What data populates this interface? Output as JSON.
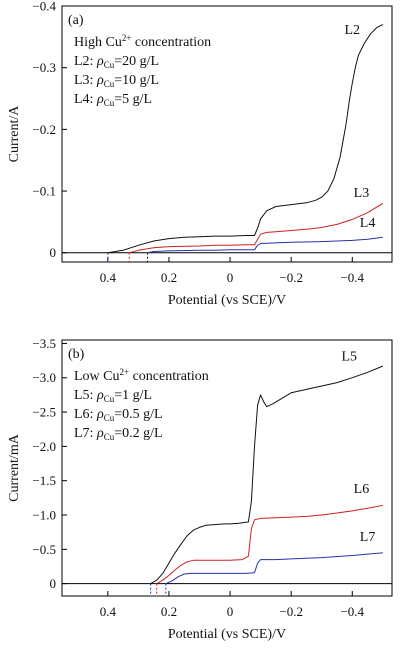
{
  "chart_data": [
    {
      "type": "line",
      "panel_label": "(a)",
      "title": "",
      "xlabel": "Potential (vs SCE)/V",
      "ylabel": "Current/A",
      "xlim": [
        0.55,
        -0.53
      ],
      "ylim": [
        0.015,
        -0.4
      ],
      "x_ticks": [
        "0.4",
        "0.2",
        "0",
        "−0.2",
        "−0.4"
      ],
      "x_tick_values": [
        0.4,
        0.2,
        0,
        -0.2,
        -0.4
      ],
      "y_ticks": [
        "0",
        "−0.1",
        "−0.2",
        "−0.3",
        "−0.4"
      ],
      "y_tick_values": [
        0,
        -0.1,
        -0.2,
        -0.3,
        -0.4
      ],
      "legend": {
        "heading": "High Cu²⁺ concentration",
        "heading_main": "High Cu",
        "heading_sup": "2+",
        "heading_rest": " concentration",
        "entries": [
          {
            "prefix": "L2: ",
            "rho": "ρ",
            "sub": "Cu",
            "rest": "=20 g/L"
          },
          {
            "prefix": "L3: ",
            "rho": "ρ",
            "sub": "Cu",
            "rest": "=10 g/L"
          },
          {
            "prefix": "L4: ",
            "rho": "ρ",
            "sub": "Cu",
            "rest": "=5 g/L"
          }
        ]
      },
      "series": [
        {
          "name": "L2",
          "color": "#111111",
          "label_at": [
            -0.4,
            -0.355
          ],
          "x": [
            0.4,
            0.35,
            0.3,
            0.25,
            0.2,
            0.15,
            0.1,
            0.05,
            0.0,
            -0.05,
            -0.08,
            -0.09,
            -0.1,
            -0.12,
            -0.15,
            -0.2,
            -0.25,
            -0.28,
            -0.3,
            -0.32,
            -0.34,
            -0.36,
            -0.38,
            -0.39,
            -0.4,
            -0.41,
            -0.42,
            -0.44,
            -0.46,
            -0.48,
            -0.5
          ],
          "y": [
            0,
            -0.004,
            -0.012,
            -0.019,
            -0.023,
            -0.025,
            -0.026,
            -0.027,
            -0.027,
            -0.028,
            -0.028,
            -0.04,
            -0.055,
            -0.068,
            -0.075,
            -0.078,
            -0.081,
            -0.085,
            -0.09,
            -0.1,
            -0.12,
            -0.155,
            -0.21,
            -0.245,
            -0.275,
            -0.3,
            -0.32,
            -0.34,
            -0.355,
            -0.365,
            -0.37
          ]
        },
        {
          "name": "L3",
          "color": "#cc2222",
          "label_at": [
            -0.43,
            -0.09
          ],
          "x": [
            0.33,
            0.3,
            0.25,
            0.2,
            0.1,
            0.05,
            0.0,
            -0.05,
            -0.08,
            -0.09,
            -0.1,
            -0.12,
            -0.15,
            -0.2,
            -0.25,
            -0.3,
            -0.35,
            -0.4,
            -0.45,
            -0.5
          ],
          "y": [
            0,
            -0.004,
            -0.008,
            -0.01,
            -0.011,
            -0.012,
            -0.012,
            -0.013,
            -0.013,
            -0.022,
            -0.03,
            -0.033,
            -0.034,
            -0.036,
            -0.038,
            -0.041,
            -0.046,
            -0.054,
            -0.065,
            -0.08
          ]
        },
        {
          "name": "L4",
          "color": "#2233aa",
          "label_at": [
            -0.45,
            -0.042
          ],
          "x": [
            0.27,
            0.25,
            0.2,
            0.1,
            0.05,
            0.0,
            -0.05,
            -0.08,
            -0.09,
            -0.1,
            -0.15,
            -0.2,
            -0.3,
            -0.4,
            -0.45,
            -0.5
          ],
          "y": [
            0,
            -0.002,
            -0.003,
            -0.004,
            -0.004,
            -0.005,
            -0.005,
            -0.005,
            -0.012,
            -0.015,
            -0.016,
            -0.017,
            -0.018,
            -0.02,
            -0.022,
            -0.025
          ]
        }
      ],
      "onset_markers": [
        {
          "x": 0.4,
          "color": "#2233aa"
        },
        {
          "x": 0.33,
          "color": "#cc2222"
        },
        {
          "x": 0.27,
          "color": "#111111"
        }
      ]
    },
    {
      "type": "line",
      "panel_label": "(b)",
      "title": "",
      "xlabel": "Potential (vs SCE)/V",
      "ylabel": "Current/mA",
      "xlim": [
        0.55,
        -0.53
      ],
      "ylim": [
        0.18,
        -3.55
      ],
      "x_ticks": [
        "0.4",
        "0.2",
        "0",
        "−0.2",
        "−0.4"
      ],
      "x_tick_values": [
        0.4,
        0.2,
        0,
        -0.2,
        -0.4
      ],
      "y_ticks": [
        "0",
        "−0.5",
        "−1.0",
        "−1.5",
        "−2.0",
        "−2.5",
        "−3.0",
        "−3.5"
      ],
      "y_tick_values": [
        0,
        -0.5,
        -1.0,
        -1.5,
        -2.0,
        -2.5,
        -3.0,
        -3.5
      ],
      "legend": {
        "heading": "Low Cu²⁺ concentration",
        "heading_main": "Low Cu",
        "heading_sup": "2+",
        "heading_rest": " concentration",
        "entries": [
          {
            "prefix": "L5: ",
            "rho": "ρ",
            "sub": "Cu",
            "rest": "=1 g/L"
          },
          {
            "prefix": "L6: ",
            "rho": "ρ",
            "sub": "Cu",
            "rest": "=0.5 g/L"
          },
          {
            "prefix": "L7: ",
            "rho": "ρ",
            "sub": "Cu",
            "rest": "=0.2 g/L"
          }
        ]
      },
      "series": [
        {
          "name": "L5",
          "color": "#111111",
          "label_at": [
            -0.39,
            -3.25
          ],
          "x": [
            0.26,
            0.24,
            0.22,
            0.2,
            0.18,
            0.16,
            0.14,
            0.12,
            0.1,
            0.08,
            0.05,
            0.02,
            0.0,
            -0.03,
            -0.06,
            -0.07,
            -0.08,
            -0.09,
            -0.1,
            -0.11,
            -0.12,
            -0.14,
            -0.17,
            -0.2,
            -0.25,
            -0.3,
            -0.35,
            -0.4,
            -0.45,
            -0.5
          ],
          "y": [
            0,
            -0.05,
            -0.15,
            -0.3,
            -0.45,
            -0.58,
            -0.7,
            -0.78,
            -0.82,
            -0.85,
            -0.86,
            -0.87,
            -0.87,
            -0.88,
            -0.9,
            -1.2,
            -2.0,
            -2.6,
            -2.75,
            -2.65,
            -2.58,
            -2.62,
            -2.7,
            -2.78,
            -2.83,
            -2.88,
            -2.93,
            -3.0,
            -3.08,
            -3.17
          ]
        },
        {
          "name": "L6",
          "color": "#cc2222",
          "label_at": [
            -0.43,
            -1.32
          ],
          "x": [
            0.24,
            0.22,
            0.2,
            0.18,
            0.16,
            0.14,
            0.12,
            0.1,
            0.05,
            0.0,
            -0.04,
            -0.06,
            -0.07,
            -0.08,
            -0.1,
            -0.15,
            -0.2,
            -0.25,
            -0.3,
            -0.35,
            -0.4,
            -0.45,
            -0.5
          ],
          "y": [
            0,
            -0.05,
            -0.12,
            -0.2,
            -0.27,
            -0.32,
            -0.34,
            -0.34,
            -0.34,
            -0.34,
            -0.35,
            -0.4,
            -0.8,
            -0.93,
            -0.95,
            -0.96,
            -0.97,
            -0.98,
            -1.0,
            -1.03,
            -1.06,
            -1.1,
            -1.14
          ]
        },
        {
          "name": "L7",
          "color": "#2233aa",
          "label_at": [
            -0.45,
            -0.62
          ],
          "x": [
            0.21,
            0.19,
            0.17,
            0.15,
            0.13,
            0.1,
            0.05,
            0.0,
            -0.05,
            -0.08,
            -0.09,
            -0.1,
            -0.15,
            -0.2,
            -0.3,
            -0.4,
            -0.45,
            -0.5
          ],
          "y": [
            0,
            -0.04,
            -0.1,
            -0.14,
            -0.15,
            -0.15,
            -0.15,
            -0.15,
            -0.15,
            -0.16,
            -0.3,
            -0.35,
            -0.35,
            -0.36,
            -0.38,
            -0.41,
            -0.43,
            -0.45
          ]
        }
      ],
      "onset_markers": [
        {
          "x": 0.26,
          "color": "#2233aa"
        },
        {
          "x": 0.24,
          "color": "#cc2222"
        },
        {
          "x": 0.21,
          "color": "#2233aa"
        }
      ]
    }
  ]
}
